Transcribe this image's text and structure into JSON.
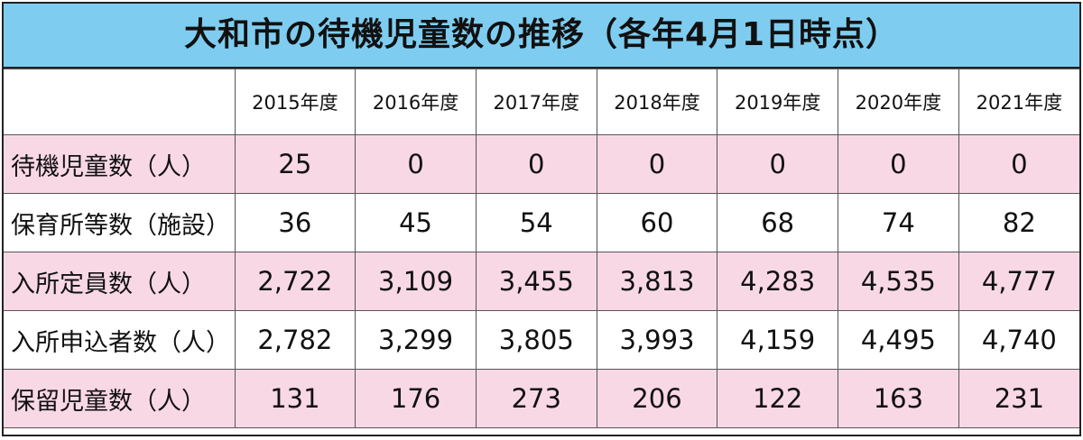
{
  "title": "大和市の待機児童数の推移（各年4月1日時点）",
  "table": {
    "columns": [
      "2015年度",
      "2016年度",
      "2017年度",
      "2018年度",
      "2019年度",
      "2020年度",
      "2021年度"
    ],
    "rows": [
      {
        "label": "待機児童数（人）",
        "values": [
          "25",
          "0",
          "0",
          "0",
          "0",
          "0",
          "0"
        ]
      },
      {
        "label": "保育所等数（施設）",
        "values": [
          "36",
          "45",
          "54",
          "60",
          "68",
          "74",
          "82"
        ]
      },
      {
        "label": "入所定員数（人）",
        "values": [
          "2,722",
          "3,109",
          "3,455",
          "3,813",
          "4,283",
          "4,535",
          "4,777"
        ]
      },
      {
        "label": "入所申込者数（人）",
        "values": [
          "2,782",
          "3,299",
          "3,805",
          "3,993",
          "4,159",
          "4,495",
          "4,740"
        ]
      },
      {
        "label": "保留児童数（人）",
        "values": [
          "131",
          "176",
          "273",
          "206",
          "122",
          "163",
          "231"
        ]
      }
    ]
  }
}
